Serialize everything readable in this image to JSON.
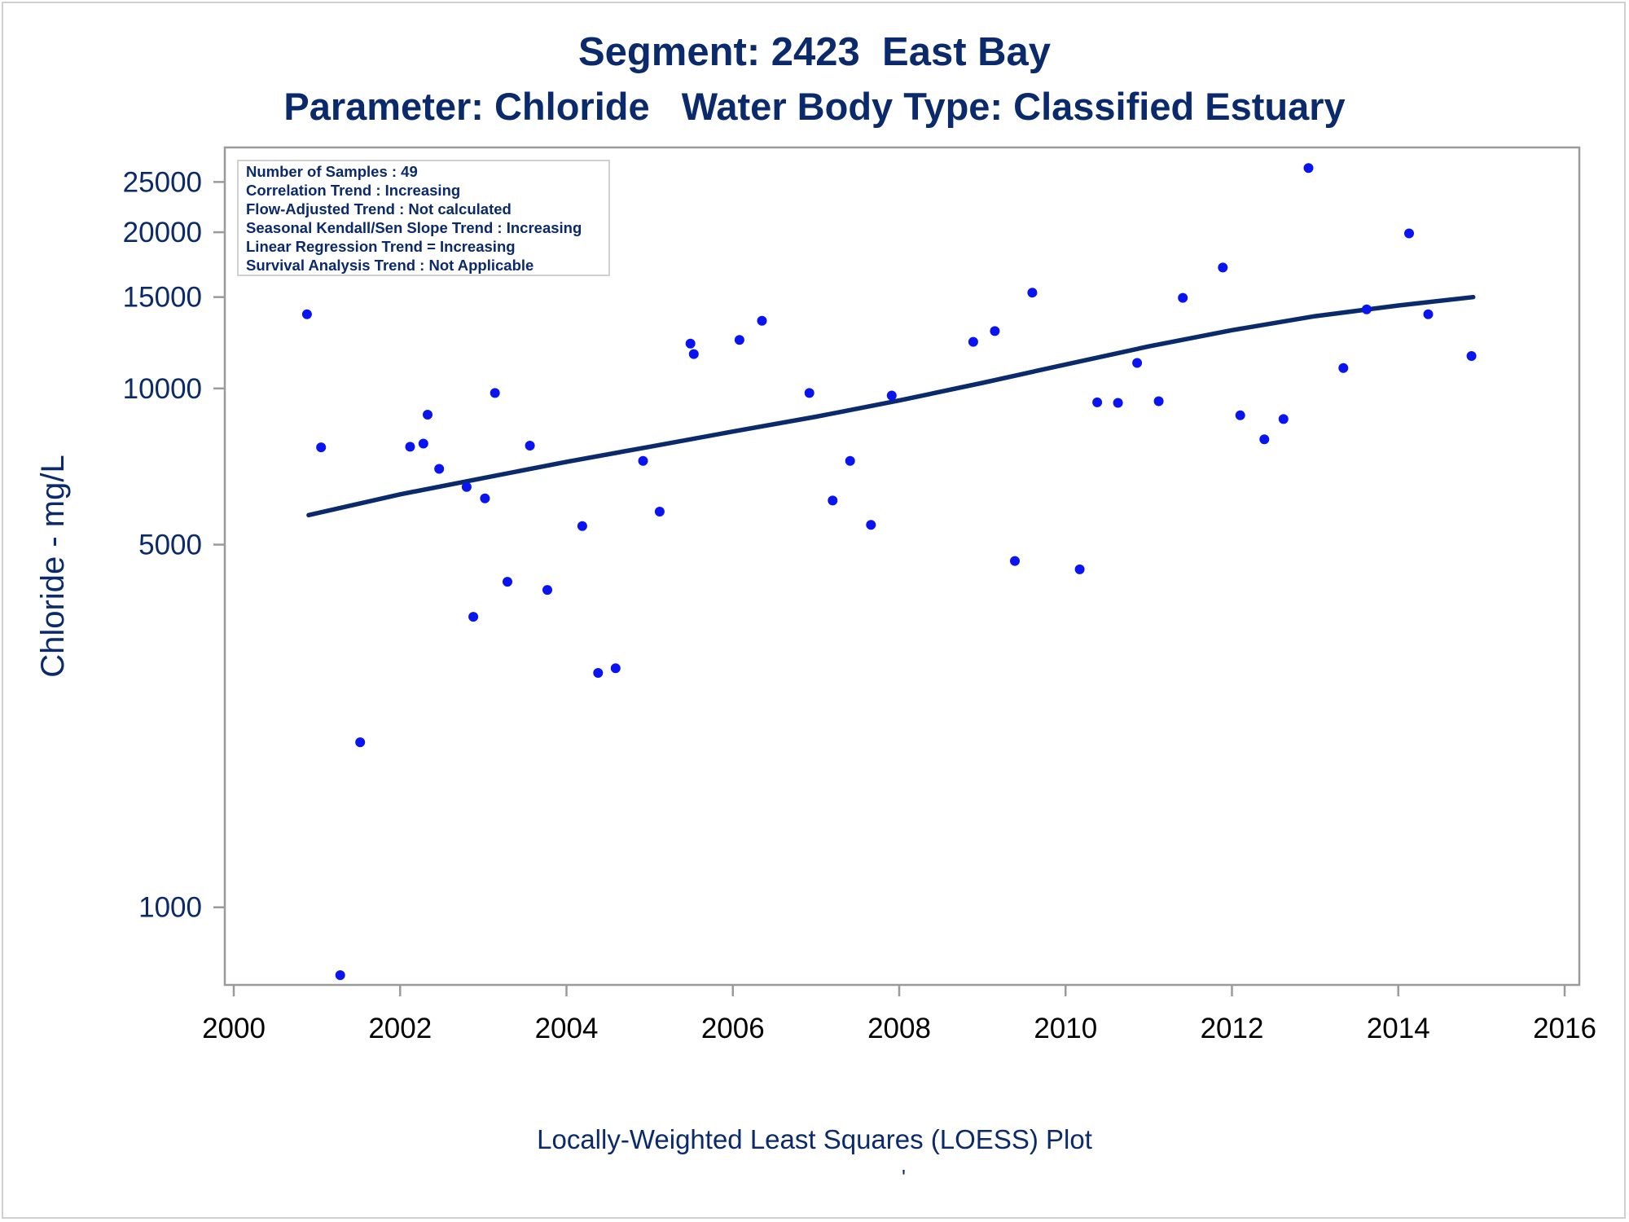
{
  "header": {
    "title": "Segment: 2423  East Bay",
    "subtitle": "Parameter: Chloride   Water Body Type: Classified Estuary"
  },
  "footer": {
    "caption": "Locally-Weighted Least Squares (LOESS) Plot",
    "mark": "'"
  },
  "stats_box": {
    "lines": [
      "Number of Samples : 49",
      "Correlation Trend : Increasing",
      "Flow-Adjusted Trend : Not calculated",
      "Seasonal Kendall/Sen Slope Trend : Increasing",
      "Linear Regression Trend = Increasing",
      "Survival Analysis Trend : Not Applicable"
    ]
  },
  "colors": {
    "text": "#0b2a6b",
    "points": "#0a14f0",
    "trend_line": "#0b2a6b",
    "axis": "#9a9a9a"
  },
  "chart_data": {
    "type": "scatter",
    "title": "Segment: 2423  East Bay",
    "subtitle": "Parameter: Chloride   Water Body Type: Classified Estuary",
    "xlabel": "",
    "ylabel": "Chloride - mg/L",
    "y_scale": "log",
    "xlim": [
      2000,
      2016
    ],
    "ylim": [
      740,
      27500
    ],
    "x_ticks": [
      "2000",
      "2002",
      "2004",
      "2006",
      "2008",
      "2010",
      "2012",
      "2014",
      "2016"
    ],
    "y_ticks": [
      "1000",
      "5000",
      "10000",
      "15000",
      "20000",
      "25000"
    ],
    "grid": false,
    "series": [
      {
        "mode": "markers",
        "points": [
          [
            2000.88,
            13900
          ],
          [
            2001.05,
            7700
          ],
          [
            2001.28,
            740
          ],
          [
            2001.52,
            2080
          ],
          [
            2002.12,
            7720
          ],
          [
            2002.28,
            7830
          ],
          [
            2002.33,
            8900
          ],
          [
            2002.47,
            7000
          ],
          [
            2002.8,
            6460
          ],
          [
            2002.88,
            3630
          ],
          [
            2003.02,
            6140
          ],
          [
            2003.14,
            9800
          ],
          [
            2003.29,
            4240
          ],
          [
            2003.56,
            7760
          ],
          [
            2003.77,
            4090
          ],
          [
            2004.19,
            5430
          ],
          [
            2004.38,
            2830
          ],
          [
            2004.59,
            2890
          ],
          [
            2004.92,
            7250
          ],
          [
            2005.12,
            5790
          ],
          [
            2005.49,
            12200
          ],
          [
            2005.53,
            11650
          ],
          [
            2006.08,
            12400
          ],
          [
            2006.35,
            13500
          ],
          [
            2006.92,
            9800
          ],
          [
            2007.2,
            6080
          ],
          [
            2007.41,
            7250
          ],
          [
            2007.66,
            5460
          ],
          [
            2007.91,
            9690
          ],
          [
            2008.89,
            12300
          ],
          [
            2009.15,
            12900
          ],
          [
            2009.39,
            4650
          ],
          [
            2009.6,
            15300
          ],
          [
            2010.17,
            4480
          ],
          [
            2010.38,
            9400
          ],
          [
            2010.63,
            9380
          ],
          [
            2010.86,
            11200
          ],
          [
            2011.12,
            9450
          ],
          [
            2011.41,
            14950
          ],
          [
            2011.89,
            17100
          ],
          [
            2012.1,
            8880
          ],
          [
            2012.39,
            7980
          ],
          [
            2012.62,
            8730
          ],
          [
            2012.92,
            26600
          ],
          [
            2013.34,
            10950
          ],
          [
            2013.62,
            14200
          ],
          [
            2014.13,
            19900
          ],
          [
            2014.36,
            13900
          ],
          [
            2014.88,
            11550
          ]
        ]
      },
      {
        "mode": "line",
        "points": [
          [
            2000.9,
            5700
          ],
          [
            2002.0,
            6250
          ],
          [
            2003.0,
            6720
          ],
          [
            2004.0,
            7220
          ],
          [
            2005.0,
            7720
          ],
          [
            2006.0,
            8260
          ],
          [
            2007.0,
            8820
          ],
          [
            2008.0,
            9480
          ],
          [
            2009.0,
            10250
          ],
          [
            2010.0,
            11120
          ],
          [
            2011.0,
            12050
          ],
          [
            2012.0,
            12950
          ],
          [
            2013.0,
            13780
          ],
          [
            2014.0,
            14450
          ],
          [
            2014.9,
            15000
          ]
        ]
      }
    ]
  }
}
